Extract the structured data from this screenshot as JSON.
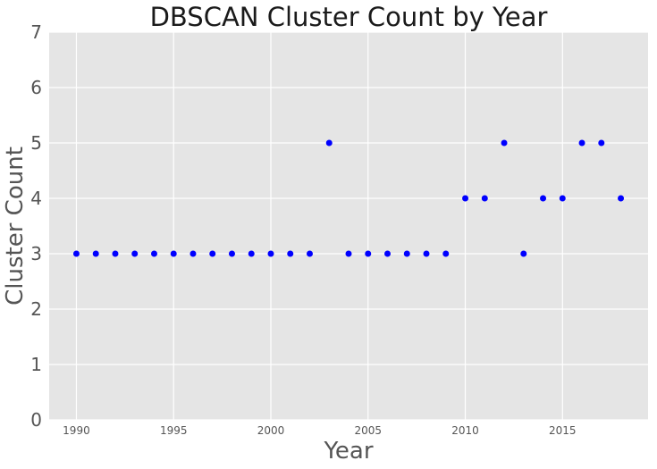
{
  "chart_data": {
    "type": "scatter",
    "title": "DBSCAN Cluster Count by Year",
    "xlabel": "Year",
    "ylabel": "Cluster Count",
    "xlim": [
      1988.6,
      2019.4
    ],
    "ylim": [
      0,
      7
    ],
    "xticks": [
      1990,
      1995,
      2000,
      2005,
      2010,
      2015
    ],
    "yticks": [
      0,
      1,
      2,
      3,
      4,
      5,
      6,
      7
    ],
    "grid": true,
    "marker_color": "#0000ff",
    "background_color": "#e5e5e5",
    "grid_color": "#ffffff",
    "x": [
      1990,
      1991,
      1992,
      1993,
      1994,
      1995,
      1996,
      1997,
      1998,
      1999,
      2000,
      2001,
      2002,
      2003,
      2004,
      2005,
      2006,
      2007,
      2008,
      2009,
      2010,
      2011,
      2012,
      2013,
      2014,
      2015,
      2016,
      2017,
      2018
    ],
    "y": [
      3,
      3,
      3,
      3,
      3,
      3,
      3,
      3,
      3,
      3,
      3,
      3,
      3,
      5,
      3,
      3,
      3,
      3,
      3,
      3,
      4,
      4,
      5,
      3,
      4,
      4,
      5,
      5,
      4
    ]
  }
}
